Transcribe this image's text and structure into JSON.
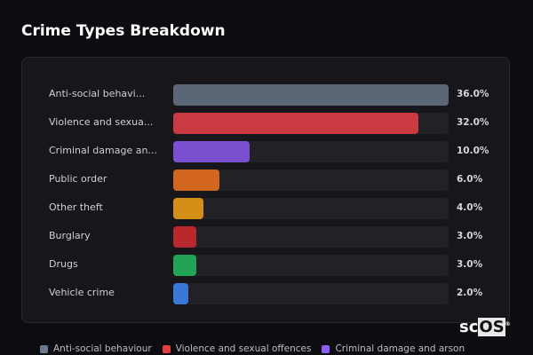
{
  "title": "Crime Types Breakdown",
  "chart_data": {
    "type": "bar",
    "orientation": "horizontal",
    "title": "Crime Types Breakdown",
    "categories": [
      "Anti-social behavi...",
      "Violence and sexua...",
      "Criminal damage an...",
      "Public order",
      "Other theft",
      "Burglary",
      "Drugs",
      "Vehicle crime"
    ],
    "values": [
      36.0,
      32.0,
      10.0,
      6.0,
      4.0,
      3.0,
      3.0,
      2.0
    ],
    "value_labels": [
      "36.0%",
      "32.0%",
      "10.0%",
      "6.0%",
      "4.0%",
      "3.0%",
      "3.0%",
      "2.0%"
    ],
    "colors": [
      "#5b6677",
      "#c93b40",
      "#7a4fd0",
      "#d2661e",
      "#d48f18",
      "#b8282c",
      "#22a457",
      "#3a78d6"
    ],
    "xlim": [
      0,
      36
    ],
    "legend": {
      "placement": "bottom",
      "entries": [
        {
          "label": "Anti-social behaviour",
          "color": "#6b7a8f"
        },
        {
          "label": "Violence and sexual offences",
          "color": "#e0403f"
        },
        {
          "label": "Criminal damage and arson",
          "color": "#8b5cf6"
        }
      ]
    }
  },
  "logo": {
    "text_a": "sc",
    "text_b": "OS",
    "mark": "®"
  }
}
